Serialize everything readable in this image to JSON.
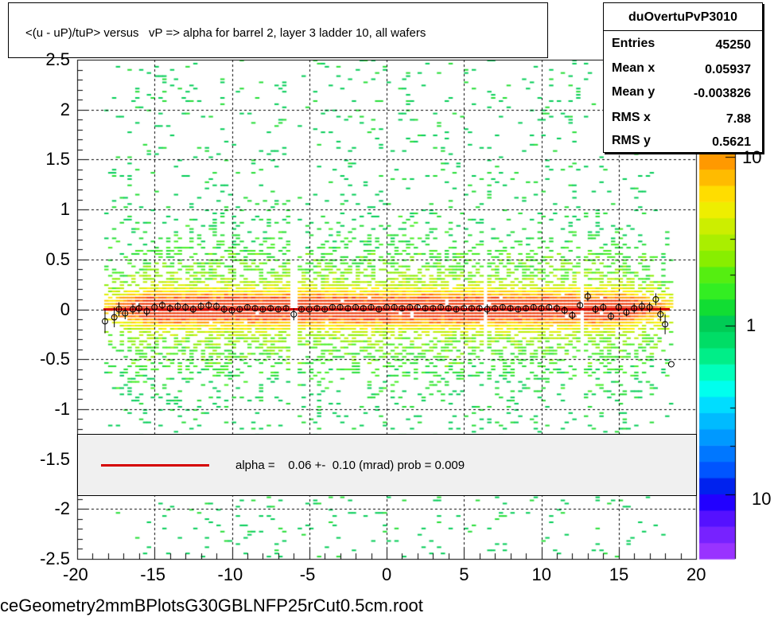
{
  "title": "<(u - uP)/tuP> versus   vP => alpha for barrel 2, layer 3 ladder 10, all wafers",
  "stats": {
    "name": "duOvertuPvP3010",
    "rows": [
      {
        "key": "Entries",
        "value": "45250"
      },
      {
        "key": "Mean x",
        "value": "0.05937"
      },
      {
        "key": "Mean y",
        "value": "-0.003826"
      },
      {
        "key": "RMS x",
        "value": "7.88"
      },
      {
        "key": "RMS y",
        "value": "0.5621"
      }
    ]
  },
  "legend": {
    "text": "alpha =    0.06 +-  0.10 (mrad) prob = 0.009",
    "line_color": "#d50000"
  },
  "filename": "ceGeometry2mmBPlotsG30GBLNFP25rCut0.5cm.root",
  "chart_data": {
    "type": "heatmap",
    "xlim": [
      -20,
      20
    ],
    "ylim": [
      -2.5,
      2.5
    ],
    "x_ticks": [
      "-20",
      "-15",
      "-10",
      "-5",
      "0",
      "5",
      "10",
      "15",
      "20"
    ],
    "y_ticks": [
      "-2.5",
      "-2",
      "-1.5",
      "-1",
      "-0.5",
      "0",
      "0.5",
      "1",
      "1.5",
      "2",
      "2.5"
    ],
    "z_scale": "log",
    "z_labels": [
      "10",
      "1",
      "10"
    ],
    "grid": true,
    "fit_line": {
      "slope": 6e-05,
      "intercept": 0.0,
      "color": "#d50000"
    },
    "profile_points": [
      {
        "x": -18.2,
        "y": -0.12,
        "err": 0.12
      },
      {
        "x": -17.6,
        "y": -0.08,
        "err": 0.1
      },
      {
        "x": -17.3,
        "y": 0.0,
        "err": 0.07
      },
      {
        "x": -16.9,
        "y": -0.04,
        "err": 0.06
      },
      {
        "x": -16.4,
        "y": 0.0,
        "err": 0.05
      },
      {
        "x": -16.0,
        "y": 0.01,
        "err": 0.05
      },
      {
        "x": -15.5,
        "y": -0.02,
        "err": 0.05
      },
      {
        "x": -15.0,
        "y": 0.02,
        "err": 0.05
      },
      {
        "x": -14.5,
        "y": 0.04,
        "err": 0.04
      },
      {
        "x": -14.0,
        "y": 0.01,
        "err": 0.04
      },
      {
        "x": -13.5,
        "y": 0.03,
        "err": 0.04
      },
      {
        "x": -13.0,
        "y": 0.02,
        "err": 0.04
      },
      {
        "x": -12.5,
        "y": 0.0,
        "err": 0.04
      },
      {
        "x": -12.0,
        "y": 0.03,
        "err": 0.04
      },
      {
        "x": -11.5,
        "y": 0.04,
        "err": 0.04
      },
      {
        "x": -11.0,
        "y": 0.03,
        "err": 0.04
      },
      {
        "x": -10.5,
        "y": 0.0,
        "err": 0.04
      },
      {
        "x": -10.0,
        "y": -0.01,
        "err": 0.03
      },
      {
        "x": -9.5,
        "y": 0.0,
        "err": 0.03
      },
      {
        "x": -9.0,
        "y": 0.02,
        "err": 0.03
      },
      {
        "x": -8.5,
        "y": 0.01,
        "err": 0.03
      },
      {
        "x": -8.0,
        "y": 0.0,
        "err": 0.03
      },
      {
        "x": -7.5,
        "y": 0.01,
        "err": 0.03
      },
      {
        "x": -7.0,
        "y": 0.0,
        "err": 0.03
      },
      {
        "x": -6.5,
        "y": 0.01,
        "err": 0.03
      },
      {
        "x": -6.0,
        "y": -0.05,
        "err": 0.06
      },
      {
        "x": -5.5,
        "y": 0.0,
        "err": 0.03
      },
      {
        "x": -5.0,
        "y": 0.0,
        "err": 0.03
      },
      {
        "x": -4.5,
        "y": 0.01,
        "err": 0.03
      },
      {
        "x": -4.0,
        "y": 0.0,
        "err": 0.03
      },
      {
        "x": -3.5,
        "y": 0.02,
        "err": 0.03
      },
      {
        "x": -3.0,
        "y": 0.02,
        "err": 0.03
      },
      {
        "x": -2.5,
        "y": 0.01,
        "err": 0.03
      },
      {
        "x": -2.0,
        "y": 0.02,
        "err": 0.03
      },
      {
        "x": -1.5,
        "y": 0.01,
        "err": 0.03
      },
      {
        "x": -1.0,
        "y": 0.02,
        "err": 0.03
      },
      {
        "x": -0.5,
        "y": 0.0,
        "err": 0.03
      },
      {
        "x": 0.0,
        "y": 0.02,
        "err": 0.03
      },
      {
        "x": 0.5,
        "y": 0.02,
        "err": 0.03
      },
      {
        "x": 1.0,
        "y": 0.01,
        "err": 0.03
      },
      {
        "x": 1.5,
        "y": 0.02,
        "err": 0.03
      },
      {
        "x": 2.0,
        "y": 0.02,
        "err": 0.03
      },
      {
        "x": 2.5,
        "y": 0.01,
        "err": 0.03
      },
      {
        "x": 3.0,
        "y": 0.01,
        "err": 0.03
      },
      {
        "x": 3.5,
        "y": 0.02,
        "err": 0.03
      },
      {
        "x": 4.0,
        "y": 0.01,
        "err": 0.03
      },
      {
        "x": 4.5,
        "y": 0.0,
        "err": 0.03
      },
      {
        "x": 5.0,
        "y": 0.01,
        "err": 0.03
      },
      {
        "x": 5.5,
        "y": 0.01,
        "err": 0.03
      },
      {
        "x": 6.0,
        "y": 0.01,
        "err": 0.03
      },
      {
        "x": 6.5,
        "y": 0.0,
        "err": 0.05
      },
      {
        "x": 7.0,
        "y": 0.01,
        "err": 0.03
      },
      {
        "x": 7.5,
        "y": 0.02,
        "err": 0.03
      },
      {
        "x": 8.0,
        "y": 0.01,
        "err": 0.03
      },
      {
        "x": 8.5,
        "y": 0.0,
        "err": 0.03
      },
      {
        "x": 9.0,
        "y": 0.01,
        "err": 0.03
      },
      {
        "x": 9.5,
        "y": 0.02,
        "err": 0.03
      },
      {
        "x": 10.0,
        "y": 0.01,
        "err": 0.03
      },
      {
        "x": 10.5,
        "y": 0.02,
        "err": 0.03
      },
      {
        "x": 11.0,
        "y": 0.01,
        "err": 0.04
      },
      {
        "x": 11.5,
        "y": -0.01,
        "err": 0.04
      },
      {
        "x": 12.0,
        "y": -0.06,
        "err": 0.04
      },
      {
        "x": 12.5,
        "y": 0.04,
        "err": 0.04
      },
      {
        "x": 13.0,
        "y": 0.13,
        "err": 0.05
      },
      {
        "x": 13.5,
        "y": 0.0,
        "err": 0.04
      },
      {
        "x": 14.0,
        "y": 0.02,
        "err": 0.04
      },
      {
        "x": 14.5,
        "y": -0.07,
        "err": 0.04
      },
      {
        "x": 15.0,
        "y": 0.02,
        "err": 0.04
      },
      {
        "x": 15.5,
        "y": -0.03,
        "err": 0.04
      },
      {
        "x": 16.0,
        "y": 0.01,
        "err": 0.05
      },
      {
        "x": 16.5,
        "y": 0.03,
        "err": 0.05
      },
      {
        "x": 17.0,
        "y": 0.02,
        "err": 0.05
      },
      {
        "x": 17.4,
        "y": 0.1,
        "err": 0.06
      },
      {
        "x": 17.7,
        "y": -0.05,
        "err": 0.07
      },
      {
        "x": 18.0,
        "y": -0.15,
        "err": 0.1
      },
      {
        "x": 18.4,
        "y": -0.55,
        "err": 0.0
      }
    ]
  }
}
